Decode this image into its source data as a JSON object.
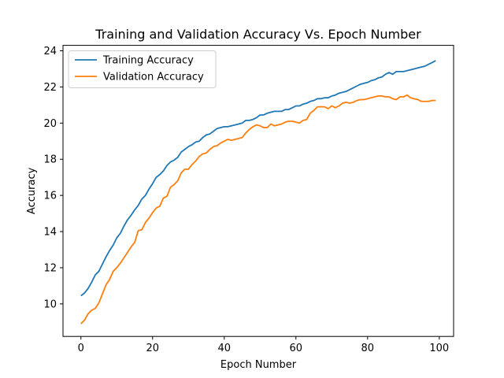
{
  "chart_data": {
    "type": "line",
    "title": "Training and Validation Accuracy Vs. Epoch Number",
    "xlabel": "Epoch Number",
    "ylabel": "Accuracy",
    "xlim": [
      -5,
      104
    ],
    "ylim": [
      8.2,
      24.3
    ],
    "xticks": [
      0,
      20,
      40,
      60,
      80,
      100
    ],
    "yticks": [
      10,
      12,
      14,
      16,
      18,
      20,
      22,
      24
    ],
    "grid": false,
    "legend_position": "top-left",
    "x": [
      0,
      1,
      2,
      3,
      4,
      5,
      6,
      7,
      8,
      9,
      10,
      11,
      12,
      13,
      14,
      15,
      16,
      17,
      18,
      19,
      20,
      21,
      22,
      23,
      24,
      25,
      26,
      27,
      28,
      29,
      30,
      31,
      32,
      33,
      34,
      35,
      36,
      37,
      38,
      39,
      40,
      41,
      42,
      43,
      44,
      45,
      46,
      47,
      48,
      49,
      50,
      51,
      52,
      53,
      54,
      55,
      56,
      57,
      58,
      59,
      60,
      61,
      62,
      63,
      64,
      65,
      66,
      67,
      68,
      69,
      70,
      71,
      72,
      73,
      74,
      75,
      76,
      77,
      78,
      79,
      80,
      81,
      82,
      83,
      84,
      85,
      86,
      87,
      88,
      89,
      90,
      91,
      92,
      93,
      94,
      95,
      96,
      97,
      98,
      99
    ],
    "series": [
      {
        "name": "Training Accuracy",
        "color": "#1f77b4",
        "values": [
          10.45,
          10.6,
          10.85,
          11.2,
          11.6,
          11.8,
          12.2,
          12.6,
          12.95,
          13.25,
          13.65,
          13.9,
          14.3,
          14.65,
          14.9,
          15.2,
          15.45,
          15.8,
          16.0,
          16.35,
          16.65,
          17.0,
          17.15,
          17.35,
          17.65,
          17.85,
          17.95,
          18.1,
          18.4,
          18.55,
          18.7,
          18.8,
          18.95,
          19.0,
          19.2,
          19.35,
          19.4,
          19.55,
          19.7,
          19.75,
          19.8,
          19.8,
          19.85,
          19.9,
          19.95,
          20.0,
          20.15,
          20.15,
          20.2,
          20.3,
          20.45,
          20.45,
          20.55,
          20.6,
          20.65,
          20.65,
          20.65,
          20.75,
          20.75,
          20.85,
          20.95,
          20.95,
          21.05,
          21.1,
          21.2,
          21.25,
          21.35,
          21.35,
          21.4,
          21.4,
          21.5,
          21.55,
          21.65,
          21.7,
          21.75,
          21.85,
          21.95,
          22.05,
          22.15,
          22.2,
          22.25,
          22.35,
          22.4,
          22.5,
          22.55,
          22.7,
          22.8,
          22.7,
          22.85,
          22.85,
          22.85,
          22.9,
          22.95,
          23.0,
          23.05,
          23.1,
          23.15,
          23.25,
          23.35,
          23.45
        ]
      },
      {
        "name": "Validation Accuracy",
        "color": "#ff7f0e",
        "values": [
          8.9,
          9.1,
          9.45,
          9.65,
          9.75,
          10.05,
          10.55,
          11.05,
          11.35,
          11.8,
          12.0,
          12.25,
          12.55,
          12.85,
          13.15,
          13.4,
          14.05,
          14.1,
          14.5,
          14.75,
          15.05,
          15.3,
          15.4,
          15.85,
          15.95,
          16.45,
          16.6,
          16.8,
          17.25,
          17.45,
          17.45,
          17.7,
          17.9,
          18.15,
          18.3,
          18.35,
          18.55,
          18.7,
          18.75,
          18.9,
          19.0,
          19.1,
          19.05,
          19.1,
          19.15,
          19.2,
          19.45,
          19.65,
          19.8,
          19.9,
          19.85,
          19.75,
          19.75,
          19.95,
          19.85,
          19.9,
          19.95,
          20.05,
          20.1,
          20.1,
          20.05,
          20.0,
          20.15,
          20.2,
          20.55,
          20.7,
          20.9,
          20.9,
          20.9,
          20.8,
          20.95,
          20.85,
          20.95,
          21.1,
          21.15,
          21.1,
          21.15,
          21.25,
          21.3,
          21.3,
          21.35,
          21.4,
          21.45,
          21.5,
          21.5,
          21.45,
          21.45,
          21.35,
          21.3,
          21.45,
          21.45,
          21.55,
          21.4,
          21.35,
          21.3,
          21.2,
          21.2,
          21.2,
          21.25,
          21.25
        ]
      }
    ]
  }
}
